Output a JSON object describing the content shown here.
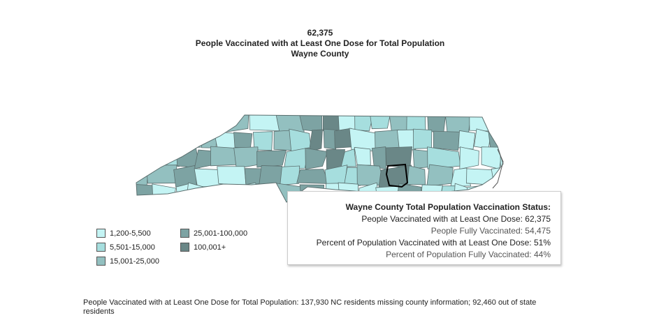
{
  "header": {
    "value": "62,375",
    "title": "People Vaccinated with at Least One Dose for Total Population",
    "county": "Wayne County"
  },
  "legend": {
    "items": [
      {
        "label": "1,200-5,500",
        "color": "#c4f4f4"
      },
      {
        "label": "5,501-15,000",
        "color": "#a6dede"
      },
      {
        "label": "15,001-25,000",
        "color": "#93c0c0"
      },
      {
        "label": "25,001-100,000",
        "color": "#7da3a3"
      },
      {
        "label": "100,001+",
        "color": "#6a8787"
      }
    ]
  },
  "tooltip": {
    "title": "Wayne County Total Population Vaccination Status:",
    "lines": [
      "People Vaccinated with at Least One Dose: 62,375",
      "People Fully Vaccinated: 54,475",
      "Percent of Population Vaccinated with at Least One Dose: 51%",
      "Percent of Population Fully Vaccinated: 44%"
    ]
  },
  "footnote": "People Vaccinated with at Least One Dose for Total Population:  137,930 NC residents missing county information; 92,460 out of state residents"
}
